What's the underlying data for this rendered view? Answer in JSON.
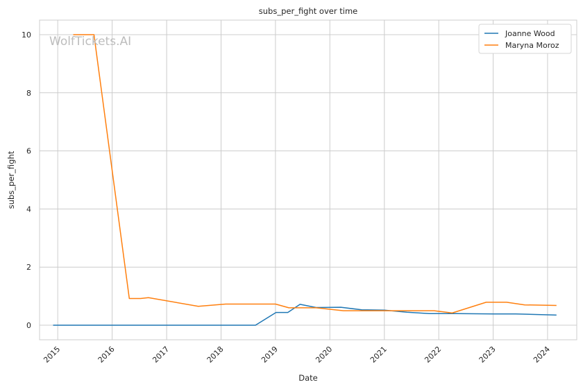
{
  "chart_data": {
    "type": "line",
    "title": "subs_per_fight over time",
    "xlabel": "Date",
    "ylabel": "subs_per_fight",
    "watermark": "WolfTickets.AI",
    "x_ticks": [
      "2015",
      "2016",
      "2017",
      "2018",
      "2019",
      "2020",
      "2021",
      "2022",
      "2023",
      "2024"
    ],
    "y_ticks": [
      "0",
      "2",
      "4",
      "6",
      "8",
      "10"
    ],
    "xlim": [
      "2014-09-01",
      "2024-07-15"
    ],
    "ylim": [
      -0.5,
      10.5
    ],
    "grid": true,
    "legend_position": "top-right",
    "series": [
      {
        "name": "Joanne Wood",
        "color": "#1f77b4",
        "points": [
          [
            "2014-12-01",
            0.0
          ],
          [
            "2015-06-01",
            0.0
          ],
          [
            "2016-06-01",
            0.0
          ],
          [
            "2017-06-01",
            0.0
          ],
          [
            "2018-08-20",
            0.0
          ],
          [
            "2019-01-05",
            0.44
          ],
          [
            "2019-03-25",
            0.44
          ],
          [
            "2019-06-15",
            0.72
          ],
          [
            "2019-10-01",
            0.61
          ],
          [
            "2020-03-15",
            0.62
          ],
          [
            "2020-08-01",
            0.53
          ],
          [
            "2021-01-01",
            0.52
          ],
          [
            "2021-06-01",
            0.45
          ],
          [
            "2021-11-01",
            0.4
          ],
          [
            "2022-05-01",
            0.4
          ],
          [
            "2023-01-01",
            0.39
          ],
          [
            "2023-06-01",
            0.39
          ],
          [
            "2024-03-01",
            0.35
          ]
        ]
      },
      {
        "name": "Maryna Moroz",
        "color": "#ff7f0e",
        "points": [
          [
            "2015-04-15",
            10.0
          ],
          [
            "2015-09-01",
            10.0
          ],
          [
            "2016-04-25",
            0.92
          ],
          [
            "2016-07-10",
            0.92
          ],
          [
            "2016-09-01",
            0.95
          ],
          [
            "2017-08-01",
            0.65
          ],
          [
            "2018-02-01",
            0.73
          ],
          [
            "2019-01-01",
            0.73
          ],
          [
            "2019-04-01",
            0.6
          ],
          [
            "2019-10-01",
            0.6
          ],
          [
            "2020-04-01",
            0.5
          ],
          [
            "2021-12-01",
            0.5
          ],
          [
            "2022-04-01",
            0.42
          ],
          [
            "2022-11-15",
            0.79
          ],
          [
            "2023-04-01",
            0.79
          ],
          [
            "2023-08-01",
            0.7
          ],
          [
            "2024-03-01",
            0.68
          ]
        ]
      }
    ]
  }
}
